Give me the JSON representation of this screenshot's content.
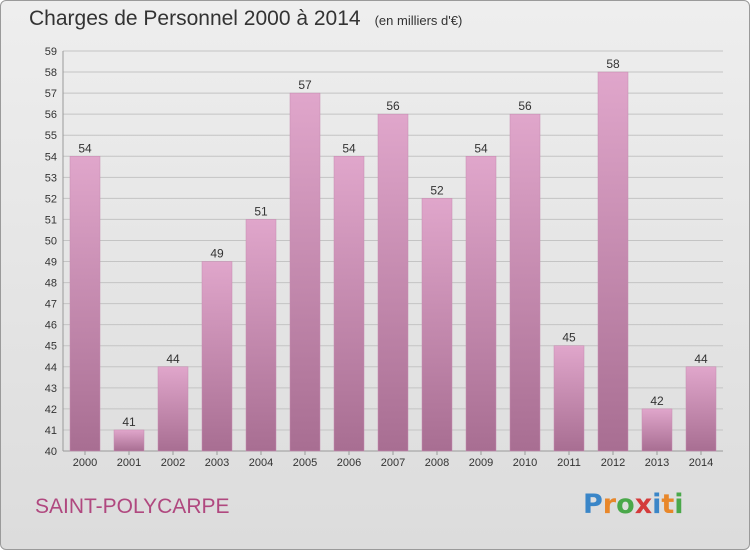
{
  "header": {
    "title": "Charges de Personnel 2000 à 2014",
    "unit": "(en milliers d'€)"
  },
  "footer": {
    "commune": "SAINT-POLYCARPE",
    "logo_letters": [
      "P",
      "r",
      "o",
      "x",
      "i",
      "t",
      "i"
    ]
  },
  "colors": {
    "bar_top": "#e0a6cb",
    "bar_bottom": "#a86e92",
    "commune": "#b0487f",
    "logo": [
      "#3a86c8",
      "#e8872a",
      "#4aa84a",
      "#d43a3a",
      "#3a86c8",
      "#e8872a",
      "#4aa84a"
    ]
  },
  "chart_data": {
    "type": "bar",
    "title": "Charges de Personnel 2000 à 2014",
    "subtitle": "(en milliers d'€)",
    "categories": [
      "2000",
      "2001",
      "2002",
      "2003",
      "2004",
      "2005",
      "2006",
      "2007",
      "2008",
      "2009",
      "2010",
      "2011",
      "2012",
      "2013",
      "2014"
    ],
    "values": [
      54,
      41,
      44,
      49,
      51,
      57,
      54,
      56,
      52,
      54,
      56,
      45,
      58,
      42,
      44
    ],
    "ylim": [
      40,
      59
    ],
    "yticks": [
      "40",
      "41",
      "42",
      "43",
      "44",
      "45",
      "46",
      "47",
      "48",
      "49",
      "50",
      "51",
      "52",
      "53",
      "54",
      "55",
      "56",
      "57",
      "58",
      "59"
    ],
    "xlabel": "",
    "ylabel": "",
    "grid": true
  }
}
